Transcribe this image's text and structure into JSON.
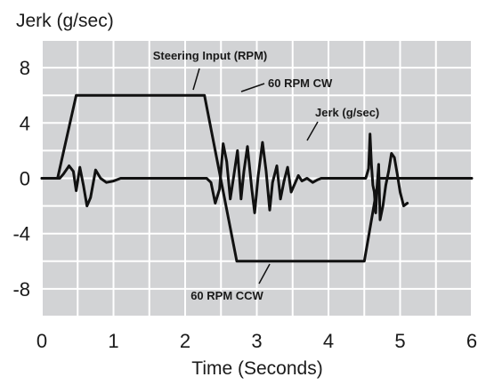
{
  "chart_data": {
    "type": "line",
    "ylabel": "Jerk (g/sec)",
    "xlabel": "Time (Seconds)",
    "xlim": [
      0,
      6
    ],
    "ylim": [
      -10,
      10
    ],
    "xticks": [
      "0",
      "1",
      "2",
      "3",
      "4",
      "5",
      "6"
    ],
    "xtick_values": [
      0,
      1,
      2,
      3,
      4,
      5,
      6
    ],
    "yticks": [
      "8",
      "4",
      "0",
      "-4",
      "-8"
    ],
    "ytick_values": [
      8,
      4,
      0,
      -4,
      -8
    ],
    "grid": true,
    "annotations": {
      "steering": "Steering Input (RPM)",
      "cw": "60 RPM CW",
      "ccw": "60 RPM CCW",
      "jerk": "Jerk (g/sec)"
    },
    "series": [
      {
        "values_x": [
          0,
          0.22,
          0.48,
          2.27,
          2.72,
          4.5,
          4.7,
          6.0
        ],
        "values_y": [
          0,
          0,
          6,
          6,
          -6,
          -6,
          0,
          0
        ]
      },
      {
        "values_x": [
          0,
          0.25,
          0.3,
          0.38,
          0.44,
          0.48,
          0.53,
          0.58,
          0.63,
          0.68,
          0.75,
          0.82,
          0.9,
          1.0,
          1.1,
          1.2,
          1.3,
          2.0,
          2.2,
          2.3,
          2.36,
          2.42,
          2.48,
          2.53,
          2.58,
          2.63,
          2.68,
          2.73,
          2.78,
          2.82,
          2.87,
          2.93,
          2.97,
          3.02,
          3.08,
          3.13,
          3.18,
          3.22,
          3.28,
          3.33,
          3.38,
          3.43,
          3.48,
          3.53,
          3.58,
          3.63,
          3.7,
          3.78,
          3.85,
          3.9,
          4.0,
          4.5,
          4.52,
          4.56,
          4.58,
          4.6,
          4.62,
          4.64,
          4.66,
          4.68,
          4.7,
          4.72,
          4.76,
          4.8,
          4.84,
          4.88,
          4.92,
          4.96,
          5.0,
          5.05,
          5.1
        ],
        "values_y": [
          0,
          0,
          0.3,
          0.9,
          0.5,
          -0.9,
          0.8,
          -0.5,
          -2.0,
          -1.4,
          0.6,
          0.0,
          -0.3,
          -0.2,
          0.0,
          0.0,
          0.0,
          0.0,
          0.0,
          0.0,
          -0.3,
          -1.8,
          -0.8,
          2.5,
          1.2,
          -1.5,
          0.2,
          2.0,
          -1.5,
          0.5,
          2.3,
          -0.8,
          -2.5,
          0.2,
          2.6,
          0.5,
          -2.3,
          -0.3,
          0.9,
          -1.5,
          -0.2,
          0.8,
          -1.0,
          -0.4,
          0.2,
          -0.2,
          0.0,
          -0.3,
          -0.1,
          0.0,
          0.0,
          0.0,
          0.0,
          0.7,
          3.2,
          1.0,
          -0.5,
          -1.0,
          -2.5,
          -0.5,
          1.0,
          -3.0,
          -2.0,
          -0.5,
          0.5,
          1.8,
          1.5,
          0.3,
          -1.0,
          -2.0,
          -1.8
        ]
      }
    ]
  }
}
